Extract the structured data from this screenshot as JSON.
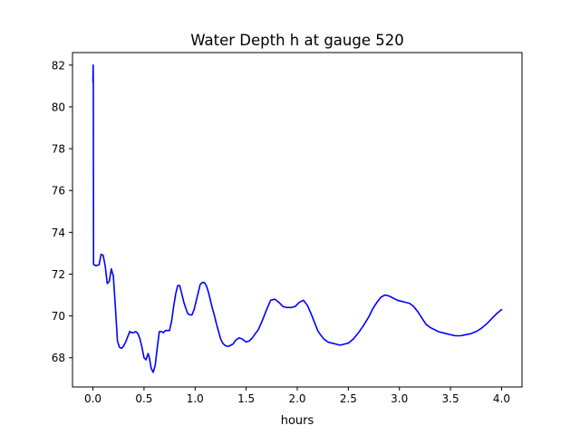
{
  "chart_data": {
    "type": "line",
    "title": "Water Depth h at gauge 520",
    "xlabel": "hours",
    "ylabel": "",
    "xlim": [
      -0.2,
      4.2
    ],
    "ylim": [
      66.6,
      82.6
    ],
    "xticks": [
      0.0,
      0.5,
      1.0,
      1.5,
      2.0,
      2.5,
      3.0,
      3.5,
      4.0
    ],
    "xtick_labels": [
      "0.0",
      "0.5",
      "1.0",
      "1.5",
      "2.0",
      "2.5",
      "3.0",
      "3.5",
      "4.0"
    ],
    "yticks": [
      68,
      70,
      72,
      74,
      76,
      78,
      80,
      82
    ],
    "ytick_labels": [
      "68",
      "70",
      "72",
      "74",
      "76",
      "78",
      "80",
      "82"
    ],
    "grid": false,
    "series": [
      {
        "color": "#0000ff",
        "x": [
          0.0,
          0.002,
          0.004,
          0.006,
          0.008,
          0.01,
          0.03,
          0.06,
          0.08,
          0.1,
          0.12,
          0.14,
          0.16,
          0.18,
          0.2,
          0.22,
          0.24,
          0.26,
          0.28,
          0.3,
          0.32,
          0.34,
          0.36,
          0.38,
          0.4,
          0.42,
          0.44,
          0.46,
          0.48,
          0.5,
          0.52,
          0.54,
          0.55,
          0.57,
          0.59,
          0.61,
          0.63,
          0.65,
          0.67,
          0.69,
          0.71,
          0.73,
          0.75,
          0.77,
          0.79,
          0.81,
          0.83,
          0.85,
          0.87,
          0.89,
          0.91,
          0.93,
          0.95,
          0.97,
          0.99,
          1.01,
          1.03,
          1.05,
          1.07,
          1.09,
          1.11,
          1.13,
          1.15,
          1.17,
          1.19,
          1.21,
          1.23,
          1.25,
          1.27,
          1.29,
          1.31,
          1.33,
          1.35,
          1.37,
          1.4,
          1.43,
          1.46,
          1.5,
          1.53,
          1.56,
          1.59,
          1.62,
          1.66,
          1.7,
          1.74,
          1.78,
          1.82,
          1.86,
          1.9,
          1.94,
          1.98,
          2.02,
          2.06,
          2.1,
          2.14,
          2.18,
          2.2,
          2.22,
          2.26,
          2.3,
          2.34,
          2.38,
          2.42,
          2.46,
          2.5,
          2.55,
          2.6,
          2.65,
          2.7,
          2.74,
          2.78,
          2.82,
          2.86,
          2.9,
          2.94,
          2.98,
          3.02,
          3.06,
          3.1,
          3.14,
          3.18,
          3.22,
          3.26,
          3.3,
          3.34,
          3.38,
          3.42,
          3.46,
          3.5,
          3.55,
          3.6,
          3.65,
          3.7,
          3.75,
          3.8,
          3.85,
          3.9,
          3.95,
          4.0
        ],
        "y": [
          81.2,
          82.0,
          81.0,
          72.5,
          72.45,
          72.45,
          72.4,
          72.45,
          72.95,
          72.9,
          72.4,
          71.55,
          71.65,
          72.25,
          71.9,
          70.4,
          68.8,
          68.5,
          68.45,
          68.55,
          68.75,
          69.0,
          69.25,
          69.2,
          69.2,
          69.25,
          69.15,
          68.9,
          68.5,
          68.0,
          67.9,
          68.2,
          68.05,
          67.5,
          67.3,
          67.65,
          68.5,
          69.25,
          69.25,
          69.2,
          69.3,
          69.3,
          69.3,
          69.75,
          70.45,
          71.05,
          71.45,
          71.45,
          71.05,
          70.65,
          70.35,
          70.1,
          70.05,
          70.05,
          70.3,
          70.7,
          71.1,
          71.5,
          71.6,
          71.6,
          71.45,
          71.15,
          70.75,
          70.35,
          70.0,
          69.6,
          69.25,
          68.9,
          68.7,
          68.6,
          68.55,
          68.55,
          68.6,
          68.65,
          68.85,
          68.95,
          68.9,
          68.75,
          68.8,
          68.95,
          69.15,
          69.35,
          69.8,
          70.3,
          70.75,
          70.8,
          70.65,
          70.45,
          70.4,
          70.4,
          70.45,
          70.65,
          70.75,
          70.5,
          70.05,
          69.55,
          69.3,
          69.15,
          68.9,
          68.75,
          68.7,
          68.65,
          68.6,
          68.65,
          68.7,
          68.9,
          69.2,
          69.55,
          69.95,
          70.35,
          70.65,
          70.9,
          71.0,
          70.95,
          70.85,
          70.75,
          70.7,
          70.65,
          70.6,
          70.45,
          70.2,
          69.9,
          69.6,
          69.45,
          69.35,
          69.25,
          69.2,
          69.15,
          69.1,
          69.05,
          69.05,
          69.1,
          69.15,
          69.25,
          69.4,
          69.6,
          69.85,
          70.1,
          70.3
        ]
      }
    ]
  }
}
